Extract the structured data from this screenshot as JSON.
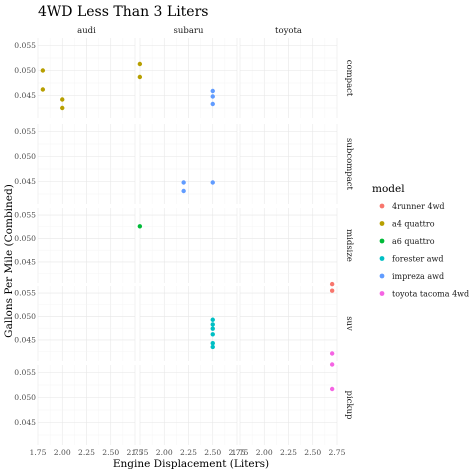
{
  "chart_data": {
    "type": "scatter",
    "title": "4WD Less Than 3 Liters",
    "xlabel": "Engine Displacement (Liters)",
    "ylabel": "Gallons Per Mile (Combined)",
    "xlim": [
      1.75,
      2.75
    ],
    "x_ticks": [
      "1.75",
      "2.00",
      "2.25",
      "2.50",
      "2.75"
    ],
    "legend_title": "model",
    "legend_position": "right",
    "grid": true,
    "columns": [
      "audi",
      "subaru",
      "toyota"
    ],
    "rows": [
      {
        "label": "compact",
        "ylim": [
          0.0405,
          0.0565
        ],
        "y_ticks": [
          "0.045",
          "0.050",
          "0.055"
        ]
      },
      {
        "label": "subcompact",
        "ylim": [
          0.0405,
          0.0565
        ],
        "y_ticks": [
          "0.045",
          "0.050",
          "0.055"
        ]
      },
      {
        "label": "midsize",
        "ylim": [
          0.0405,
          0.0565
        ],
        "y_ticks": [
          "0.045",
          "0.050",
          "0.055"
        ]
      },
      {
        "label": "suv",
        "ylim": [
          0.0405,
          0.0565
        ],
        "y_ticks": [
          "0.045",
          "0.050",
          "0.055"
        ]
      },
      {
        "label": "pickup",
        "ylim": [
          0.0405,
          0.0565
        ],
        "y_ticks": [
          "0.045",
          "0.050",
          "0.055"
        ]
      }
    ],
    "series": [
      {
        "name": "4runner 4wd",
        "color": "#F8766D",
        "points": [
          {
            "manufacturer": "toyota",
            "class": "suv",
            "x": 2.7,
            "y": 0.0555
          },
          {
            "manufacturer": "toyota",
            "class": "suv",
            "x": 2.7,
            "y": 0.0569
          }
        ]
      },
      {
        "name": "a4 quattro",
        "color": "#B79F00",
        "points": [
          {
            "manufacturer": "audi",
            "class": "compact",
            "x": 1.8,
            "y": 0.05
          },
          {
            "manufacturer": "audi",
            "class": "compact",
            "x": 1.8,
            "y": 0.0462
          },
          {
            "manufacturer": "audi",
            "class": "compact",
            "x": 2.0,
            "y": 0.0442
          },
          {
            "manufacturer": "audi",
            "class": "compact",
            "x": 2.0,
            "y": 0.0425
          },
          {
            "manufacturer": "audi",
            "class": "compact",
            "x": 2.8,
            "y": 0.0513
          },
          {
            "manufacturer": "audi",
            "class": "compact",
            "x": 2.8,
            "y": 0.0487
          }
        ]
      },
      {
        "name": "a6 quattro",
        "color": "#00BA38",
        "points": [
          {
            "manufacturer": "audi",
            "class": "midsize",
            "x": 2.8,
            "y": 0.0526
          }
        ]
      },
      {
        "name": "forester awd",
        "color": "#00BFC4",
        "points": [
          {
            "manufacturer": "subaru",
            "class": "suv",
            "x": 2.5,
            "y": 0.0493
          },
          {
            "manufacturer": "subaru",
            "class": "suv",
            "x": 2.5,
            "y": 0.0483
          },
          {
            "manufacturer": "subaru",
            "class": "suv",
            "x": 2.5,
            "y": 0.0474
          },
          {
            "manufacturer": "subaru",
            "class": "suv",
            "x": 2.5,
            "y": 0.0462
          },
          {
            "manufacturer": "subaru",
            "class": "suv",
            "x": 2.5,
            "y": 0.0443
          },
          {
            "manufacturer": "subaru",
            "class": "suv",
            "x": 2.5,
            "y": 0.0435
          }
        ]
      },
      {
        "name": "impreza awd",
        "color": "#619CFF",
        "points": [
          {
            "manufacturer": "subaru",
            "class": "compact",
            "x": 2.5,
            "y": 0.0459
          },
          {
            "manufacturer": "subaru",
            "class": "compact",
            "x": 2.5,
            "y": 0.0448
          },
          {
            "manufacturer": "subaru",
            "class": "compact",
            "x": 2.5,
            "y": 0.0433
          },
          {
            "manufacturer": "subaru",
            "class": "subcompact",
            "x": 2.2,
            "y": 0.0448
          },
          {
            "manufacturer": "subaru",
            "class": "subcompact",
            "x": 2.2,
            "y": 0.0431
          },
          {
            "manufacturer": "subaru",
            "class": "subcompact",
            "x": 2.5,
            "y": 0.0448
          }
        ]
      },
      {
        "name": "toyota tacoma 4wd",
        "color": "#F564E3",
        "points": [
          {
            "manufacturer": "toyota",
            "class": "pickup",
            "x": 2.7,
            "y": 0.0588
          },
          {
            "manufacturer": "toyota",
            "class": "pickup",
            "x": 2.7,
            "y": 0.0566
          },
          {
            "manufacturer": "toyota",
            "class": "pickup",
            "x": 2.7,
            "y": 0.0517
          }
        ]
      }
    ]
  }
}
